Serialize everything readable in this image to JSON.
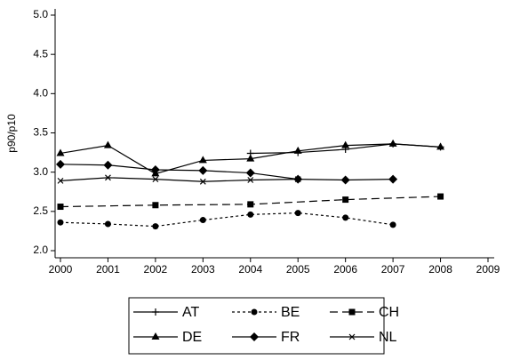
{
  "chart_data": {
    "type": "line",
    "y_label": "p90/p10",
    "xlim": [
      2000,
      2009
    ],
    "xticks": [
      2000,
      2001,
      2002,
      2003,
      2004,
      2005,
      2006,
      2007,
      2008,
      2009
    ],
    "ylim": [
      2,
      5
    ],
    "yticks": [
      {
        "value": 2,
        "label": "2.0"
      },
      {
        "value": 2.5,
        "label": "2.5"
      },
      {
        "value": 3,
        "label": "3.0"
      },
      {
        "value": 3.5,
        "label": "3.5"
      },
      {
        "value": 4,
        "label": "4.0"
      },
      {
        "value": 4.5,
        "label": "4.5"
      },
      {
        "value": 5,
        "label": "5.0"
      }
    ],
    "series": [
      {
        "name": "AT",
        "color": "#000000",
        "dash": "none",
        "marker": "plus",
        "x": [
          2004,
          2005,
          2006,
          2007,
          2008
        ],
        "values": [
          3.24,
          3.25,
          3.29,
          3.36,
          3.32
        ]
      },
      {
        "name": "BE",
        "color": "#000000",
        "dash": "3,3",
        "marker": "circle",
        "x": [
          2000,
          2001,
          2002,
          2003,
          2004,
          2005,
          2006,
          2007
        ],
        "values": [
          2.36,
          2.34,
          2.31,
          2.39,
          2.46,
          2.48,
          2.42,
          2.33
        ]
      },
      {
        "name": "CH",
        "color": "#000000",
        "dash": "9,5",
        "marker": "square",
        "x": [
          2000,
          2002,
          2004,
          2006,
          2008
        ],
        "values": [
          2.56,
          2.58,
          2.59,
          2.65,
          2.69
        ]
      },
      {
        "name": "DE",
        "color": "#000000",
        "dash": "none",
        "marker": "triangle",
        "x": [
          2000,
          2001,
          2002,
          2003,
          2004,
          2005,
          2006,
          2007,
          2008
        ],
        "values": [
          3.24,
          3.34,
          2.98,
          3.15,
          3.17,
          3.27,
          3.34,
          3.36,
          3.32
        ]
      },
      {
        "name": "FR",
        "color": "#000000",
        "dash": "none",
        "marker": "diamond",
        "x": [
          2000,
          2001,
          2002,
          2003,
          2004,
          2005,
          2006,
          2007
        ],
        "values": [
          3.1,
          3.09,
          3.03,
          3.02,
          2.99,
          2.91,
          2.9,
          2.91
        ]
      },
      {
        "name": "NL",
        "color": "#000000",
        "dash": "none",
        "marker": "x",
        "x": [
          2000,
          2001,
          2002,
          2003,
          2004,
          2005
        ],
        "values": [
          2.89,
          2.93,
          2.91,
          2.88,
          2.9,
          2.91
        ]
      }
    ]
  }
}
